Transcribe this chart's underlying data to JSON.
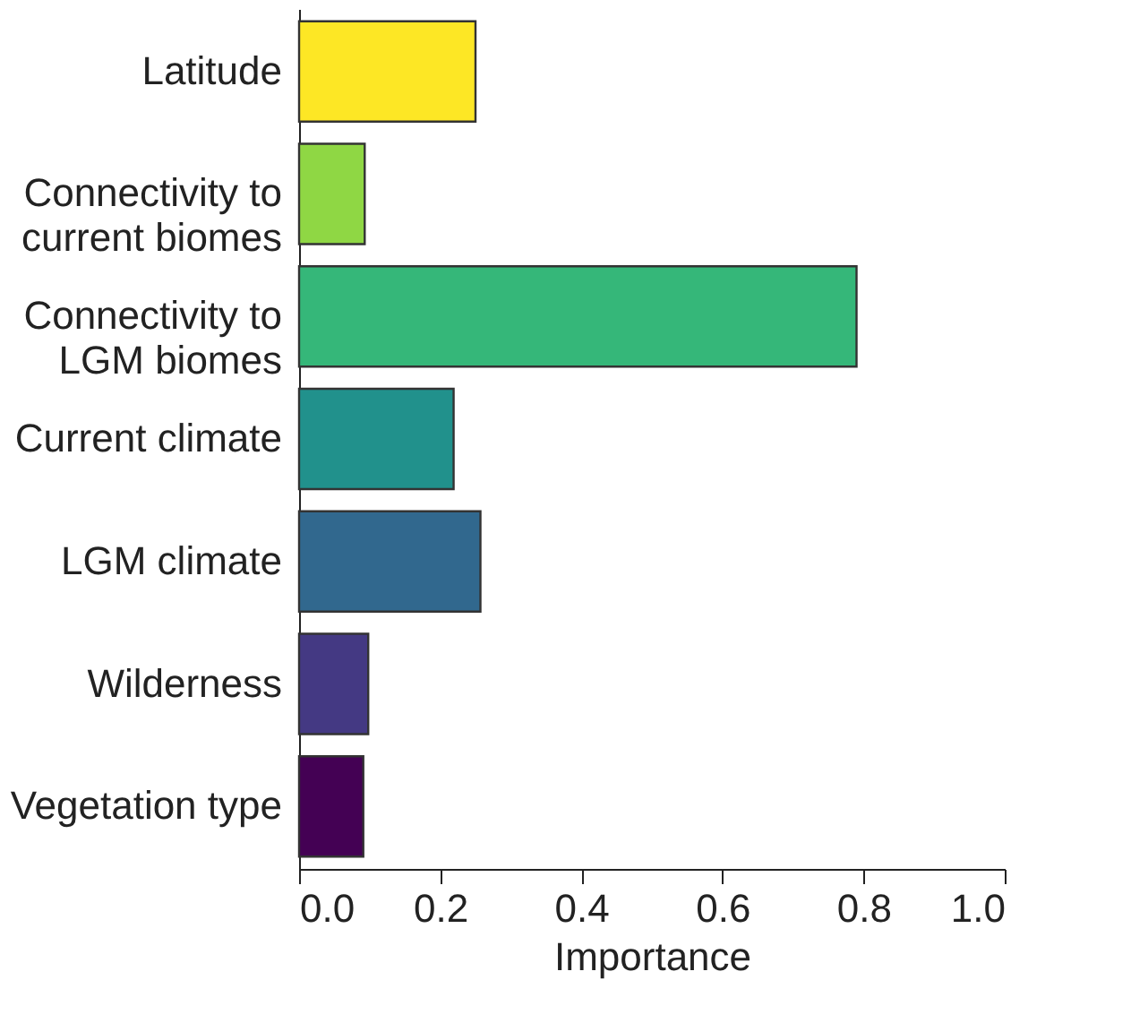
{
  "chart_data": {
    "type": "bar",
    "orientation": "horizontal",
    "xlabel": "Importance",
    "categories": [
      "Latitude",
      "Connectivity to\ncurrent biomes",
      "Connectivity to\nLGM biomes",
      "Current climate",
      "LGM climate",
      "Wilderness",
      "Vegetation type"
    ],
    "values": [
      0.25,
      0.093,
      0.79,
      0.219,
      0.257,
      0.098,
      0.091
    ],
    "colors": [
      "#fde725",
      "#8fd744",
      "#35b779",
      "#21918c",
      "#31688e",
      "#443983",
      "#440154"
    ],
    "xlim": [
      0,
      1
    ],
    "xticks": [
      {
        "value": 0,
        "label": "0.0"
      },
      0.2,
      0.4,
      0.6,
      0.8,
      {
        "value": 1,
        "label": "1.0"
      }
    ],
    "grid": false,
    "legend": false
  }
}
